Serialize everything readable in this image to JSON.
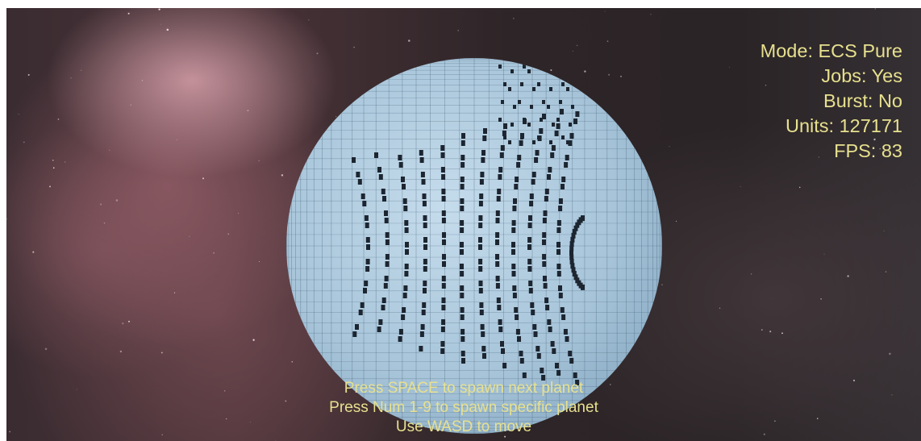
{
  "hud": {
    "mode": "Mode: ECS Pure",
    "jobs": "Jobs: Yes",
    "burst": "Burst: No",
    "units": "Units: 127171",
    "fps": "FPS: 83"
  },
  "instructions": {
    "line1": "Press SPACE to spawn next planet",
    "line2": "Press Num 1-9 to spawn specific planet",
    "line3": "Use WASD to move"
  },
  "colors": {
    "hud_text": "#e7e08e",
    "planet_voxel": "#a9c6dc",
    "voxel_gap": "#1c2530"
  }
}
